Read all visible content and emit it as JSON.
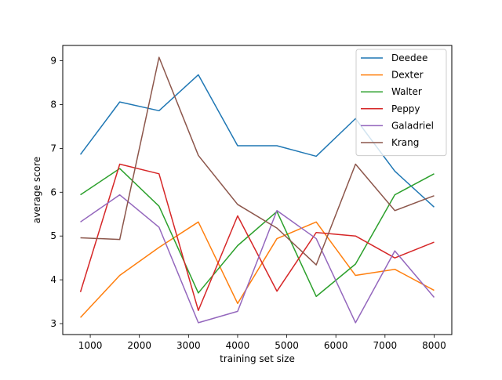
{
  "chart_data": {
    "type": "line",
    "title": "",
    "xlabel": "training set size",
    "ylabel": "average score",
    "xlim": [
      440,
      8360
    ],
    "ylim": [
      2.75,
      9.35
    ],
    "xticks": [
      1000,
      2000,
      3000,
      4000,
      5000,
      6000,
      7000,
      8000
    ],
    "yticks": [
      3,
      4,
      5,
      6,
      7,
      8,
      9
    ],
    "grid": false,
    "legend_position": "top-right",
    "x": [
      800,
      1600,
      2400,
      3200,
      4000,
      4800,
      5600,
      6400,
      7200,
      8000
    ],
    "series": [
      {
        "name": "Deedee",
        "color": "#1f77b4",
        "values": [
          6.86,
          8.06,
          7.86,
          8.68,
          7.06,
          7.06,
          6.82,
          7.68,
          6.48,
          5.66
        ]
      },
      {
        "name": "Dexter",
        "color": "#ff7f0e",
        "values": [
          3.14,
          4.1,
          4.74,
          5.32,
          3.46,
          4.94,
          5.32,
          4.1,
          4.24,
          3.76
        ]
      },
      {
        "name": "Walter",
        "color": "#2ca02c",
        "values": [
          5.94,
          6.54,
          5.68,
          3.7,
          4.78,
          5.56,
          3.62,
          4.36,
          5.94,
          6.42
        ]
      },
      {
        "name": "Peppy",
        "color": "#d62728",
        "values": [
          3.72,
          6.64,
          6.42,
          3.3,
          5.46,
          3.74,
          5.08,
          5.0,
          4.5,
          4.86
        ]
      },
      {
        "name": "Galadriel",
        "color": "#9467bd",
        "values": [
          5.32,
          5.94,
          5.2,
          3.02,
          3.28,
          5.58,
          4.94,
          3.02,
          4.66,
          3.6
        ]
      },
      {
        "name": "Krang",
        "color": "#8c564b",
        "values": [
          4.96,
          4.92,
          9.08,
          6.84,
          5.72,
          5.18,
          4.34,
          6.64,
          5.58,
          5.92
        ]
      }
    ]
  }
}
